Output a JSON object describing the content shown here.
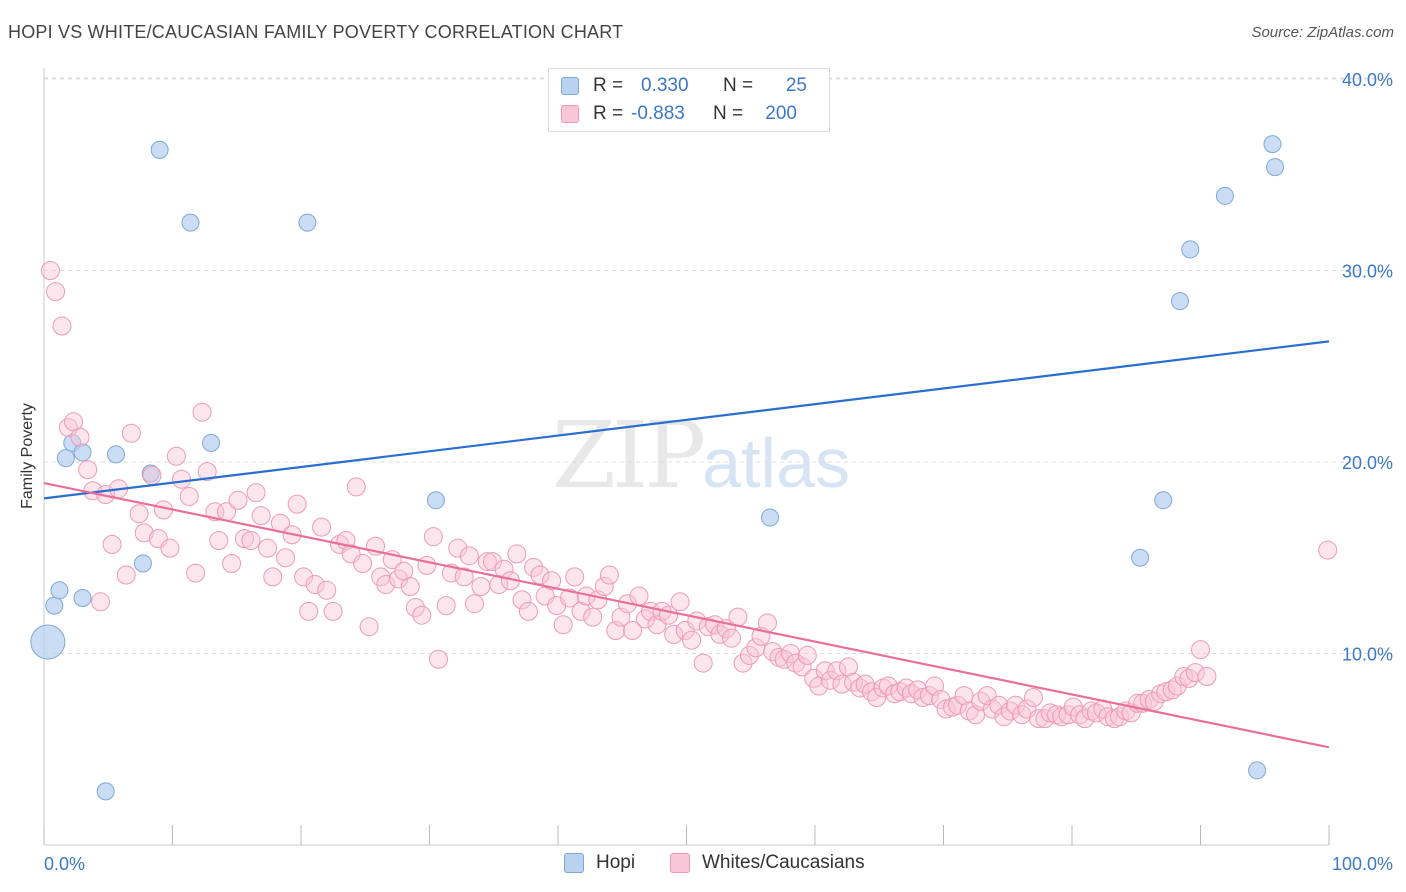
{
  "title": "HOPI VS WHITE/CAUCASIAN FAMILY POVERTY CORRELATION CHART",
  "source": "Source: ZipAtlas.com",
  "watermark": {
    "zip": "ZIP",
    "atlas": "atlas"
  },
  "colors": {
    "hopi_fill": "#b8d2f0",
    "hopi_stroke": "#7fa8d8",
    "hopi_line": "#2a6fcf",
    "white_fill": "#f8c6d6",
    "white_stroke": "#ee9ab6",
    "white_line": "#e8709a",
    "tick_text": "#3b78c8",
    "grid": "#dddddd"
  },
  "stats": [
    {
      "r_label": "R =",
      "r_value": "0.330",
      "n_label": "N =",
      "n_value": "25"
    },
    {
      "r_label": "R =",
      "r_value": "-0.883",
      "n_label": "N =",
      "n_value": "200"
    }
  ],
  "chart_data": {
    "type": "scatter",
    "title": "HOPI VS WHITE/CAUCASIAN FAMILY POVERTY CORRELATION CHART",
    "xlabel": "",
    "ylabel": "Family Poverty",
    "xlim": [
      0,
      100
    ],
    "ylim": [
      0,
      42
    ],
    "x_tick_labels": [
      "0.0%",
      "100.0%"
    ],
    "y_ticks": [
      10,
      20,
      30,
      40
    ],
    "y_tick_labels": [
      "10.0%",
      "20.0%",
      "30.0%",
      "40.0%"
    ],
    "grid": "horizontal dashed",
    "legend_position": "bottom-center",
    "series": [
      {
        "name": "Hopi",
        "points": [
          [
            0.3,
            10.6
          ],
          [
            0.8,
            12.5
          ],
          [
            1.2,
            13.3
          ],
          [
            1.7,
            20.2
          ],
          [
            2.2,
            21.0
          ],
          [
            3.0,
            20.5
          ],
          [
            3.0,
            12.9
          ],
          [
            4.8,
            2.8
          ],
          [
            5.6,
            20.4
          ],
          [
            7.7,
            14.7
          ],
          [
            8.3,
            19.4
          ],
          [
            9.0,
            36.3
          ],
          [
            11.4,
            32.5
          ],
          [
            13.0,
            21.0
          ],
          [
            20.5,
            32.5
          ],
          [
            30.5,
            18.0
          ],
          [
            56.5,
            17.1
          ],
          [
            85.3,
            15.0
          ],
          [
            87.1,
            18.0
          ],
          [
            88.4,
            28.4
          ],
          [
            89.2,
            31.1
          ],
          [
            91.9,
            33.9
          ],
          [
            94.4,
            3.9
          ],
          [
            95.6,
            36.6
          ],
          [
            95.8,
            35.4
          ]
        ],
        "trend": [
          [
            0,
            18.1
          ],
          [
            100,
            26.3
          ]
        ]
      },
      {
        "name": "Whites/Caucasians",
        "points": [
          [
            0.5,
            30.0
          ],
          [
            0.9,
            28.9
          ],
          [
            1.4,
            27.1
          ],
          [
            1.9,
            21.8
          ],
          [
            2.3,
            22.1
          ],
          [
            2.8,
            21.3
          ],
          [
            3.4,
            19.6
          ],
          [
            3.8,
            18.5
          ],
          [
            4.4,
            12.7
          ],
          [
            4.8,
            18.3
          ],
          [
            5.3,
            15.7
          ],
          [
            5.8,
            18.6
          ],
          [
            6.4,
            14.1
          ],
          [
            6.8,
            21.5
          ],
          [
            7.4,
            17.3
          ],
          [
            7.8,
            16.3
          ],
          [
            8.4,
            19.3
          ],
          [
            8.9,
            16.0
          ],
          [
            9.3,
            17.5
          ],
          [
            9.8,
            15.5
          ],
          [
            10.3,
            20.3
          ],
          [
            10.7,
            19.1
          ],
          [
            11.3,
            18.2
          ],
          [
            11.8,
            14.2
          ],
          [
            12.3,
            22.6
          ],
          [
            12.7,
            19.5
          ],
          [
            13.3,
            17.4
          ],
          [
            13.6,
            15.9
          ],
          [
            14.2,
            17.4
          ],
          [
            14.6,
            14.7
          ],
          [
            15.1,
            18.0
          ],
          [
            15.6,
            16.0
          ],
          [
            16.1,
            15.9
          ],
          [
            16.5,
            18.4
          ],
          [
            16.9,
            17.2
          ],
          [
            17.4,
            15.5
          ],
          [
            17.8,
            14.0
          ],
          [
            18.4,
            16.8
          ],
          [
            18.8,
            15.0
          ],
          [
            19.3,
            16.2
          ],
          [
            19.7,
            17.8
          ],
          [
            20.2,
            14.0
          ],
          [
            20.6,
            12.2
          ],
          [
            21.1,
            13.6
          ],
          [
            21.6,
            16.6
          ],
          [
            22.0,
            13.3
          ],
          [
            22.5,
            12.2
          ],
          [
            23.0,
            15.7
          ],
          [
            23.5,
            15.9
          ],
          [
            23.9,
            15.2
          ],
          [
            24.3,
            18.7
          ],
          [
            24.8,
            14.7
          ],
          [
            25.3,
            11.4
          ],
          [
            25.8,
            15.6
          ],
          [
            26.2,
            14.0
          ],
          [
            26.6,
            13.6
          ],
          [
            27.1,
            14.9
          ],
          [
            27.6,
            13.9
          ],
          [
            28.0,
            14.3
          ],
          [
            28.5,
            13.5
          ],
          [
            28.9,
            12.4
          ],
          [
            29.4,
            12.0
          ],
          [
            29.8,
            14.6
          ],
          [
            30.3,
            16.1
          ],
          [
            30.7,
            9.7
          ],
          [
            31.3,
            12.5
          ],
          [
            31.7,
            14.2
          ],
          [
            32.2,
            15.5
          ],
          [
            32.7,
            14.0
          ],
          [
            33.1,
            15.1
          ],
          [
            33.5,
            12.6
          ],
          [
            34.0,
            13.5
          ],
          [
            34.5,
            14.8
          ],
          [
            34.9,
            14.8
          ],
          [
            35.4,
            13.6
          ],
          [
            35.8,
            14.4
          ],
          [
            36.3,
            13.8
          ],
          [
            36.8,
            15.2
          ],
          [
            37.2,
            12.8
          ],
          [
            37.7,
            12.2
          ],
          [
            38.1,
            14.5
          ],
          [
            38.6,
            14.1
          ],
          [
            39.0,
            13.0
          ],
          [
            39.5,
            13.8
          ],
          [
            39.9,
            12.5
          ],
          [
            40.4,
            11.5
          ],
          [
            40.9,
            12.9
          ],
          [
            41.3,
            14.0
          ],
          [
            41.8,
            12.2
          ],
          [
            42.2,
            13.0
          ],
          [
            42.7,
            11.9
          ],
          [
            43.1,
            12.8
          ],
          [
            43.6,
            13.5
          ],
          [
            44.0,
            14.1
          ],
          [
            44.5,
            11.2
          ],
          [
            44.9,
            11.9
          ],
          [
            45.4,
            12.6
          ],
          [
            45.8,
            11.2
          ],
          [
            46.3,
            13.0
          ],
          [
            46.8,
            11.8
          ],
          [
            47.2,
            12.2
          ],
          [
            47.7,
            11.5
          ],
          [
            48.1,
            12.2
          ],
          [
            48.6,
            12.0
          ],
          [
            49.0,
            11.0
          ],
          [
            49.5,
            12.7
          ],
          [
            49.9,
            11.2
          ],
          [
            50.4,
            10.7
          ],
          [
            50.8,
            11.7
          ],
          [
            51.3,
            9.5
          ],
          [
            51.7,
            11.4
          ],
          [
            52.2,
            11.5
          ],
          [
            52.6,
            11.0
          ],
          [
            53.1,
            11.3
          ],
          [
            53.5,
            10.8
          ],
          [
            54.0,
            11.9
          ],
          [
            54.4,
            9.5
          ],
          [
            54.9,
            9.9
          ],
          [
            55.4,
            10.3
          ],
          [
            55.8,
            10.9
          ],
          [
            56.3,
            11.6
          ],
          [
            56.7,
            10.1
          ],
          [
            57.2,
            9.8
          ],
          [
            57.6,
            9.7
          ],
          [
            58.1,
            10.0
          ],
          [
            58.5,
            9.5
          ],
          [
            59.0,
            9.3
          ],
          [
            59.4,
            9.9
          ],
          [
            59.9,
            8.7
          ],
          [
            60.3,
            8.3
          ],
          [
            60.8,
            9.1
          ],
          [
            61.2,
            8.6
          ],
          [
            61.7,
            9.1
          ],
          [
            62.1,
            8.4
          ],
          [
            62.6,
            9.3
          ],
          [
            63.0,
            8.5
          ],
          [
            63.5,
            8.2
          ],
          [
            63.9,
            8.4
          ],
          [
            64.4,
            8.0
          ],
          [
            64.8,
            7.7
          ],
          [
            65.3,
            8.2
          ],
          [
            65.7,
            8.3
          ],
          [
            66.2,
            7.9
          ],
          [
            66.6,
            8.0
          ],
          [
            67.1,
            8.2
          ],
          [
            67.5,
            7.9
          ],
          [
            68.0,
            8.1
          ],
          [
            68.4,
            7.7
          ],
          [
            68.9,
            7.8
          ],
          [
            69.3,
            8.3
          ],
          [
            69.8,
            7.6
          ],
          [
            70.2,
            7.1
          ],
          [
            70.7,
            7.2
          ],
          [
            71.1,
            7.3
          ],
          [
            71.6,
            7.8
          ],
          [
            72.0,
            7.0
          ],
          [
            72.5,
            6.8
          ],
          [
            72.9,
            7.5
          ],
          [
            73.4,
            7.8
          ],
          [
            73.8,
            7.1
          ],
          [
            74.3,
            7.3
          ],
          [
            74.7,
            6.7
          ],
          [
            75.2,
            7.0
          ],
          [
            75.6,
            7.3
          ],
          [
            76.1,
            6.8
          ],
          [
            76.5,
            7.1
          ],
          [
            77.0,
            7.7
          ],
          [
            77.4,
            6.6
          ],
          [
            77.9,
            6.6
          ],
          [
            78.3,
            6.9
          ],
          [
            78.8,
            6.8
          ],
          [
            79.2,
            6.7
          ],
          [
            79.7,
            6.8
          ],
          [
            80.1,
            7.2
          ],
          [
            80.6,
            6.8
          ],
          [
            81.0,
            6.6
          ],
          [
            81.5,
            7.0
          ],
          [
            81.9,
            6.9
          ],
          [
            82.4,
            7.1
          ],
          [
            82.8,
            6.7
          ],
          [
            83.3,
            6.6
          ],
          [
            83.7,
            6.7
          ],
          [
            84.2,
            7.0
          ],
          [
            84.6,
            6.9
          ],
          [
            85.1,
            7.4
          ],
          [
            85.5,
            7.4
          ],
          [
            86.0,
            7.6
          ],
          [
            86.4,
            7.5
          ],
          [
            86.9,
            7.9
          ],
          [
            87.3,
            8.0
          ],
          [
            87.8,
            8.1
          ],
          [
            88.2,
            8.3
          ],
          [
            88.7,
            8.8
          ],
          [
            89.1,
            8.7
          ],
          [
            89.6,
            9.0
          ],
          [
            90.0,
            10.2
          ],
          [
            90.5,
            8.8
          ],
          [
            99.9,
            15.4
          ]
        ],
        "trend": [
          [
            0,
            18.9
          ],
          [
            100,
            5.1
          ]
        ]
      }
    ]
  }
}
